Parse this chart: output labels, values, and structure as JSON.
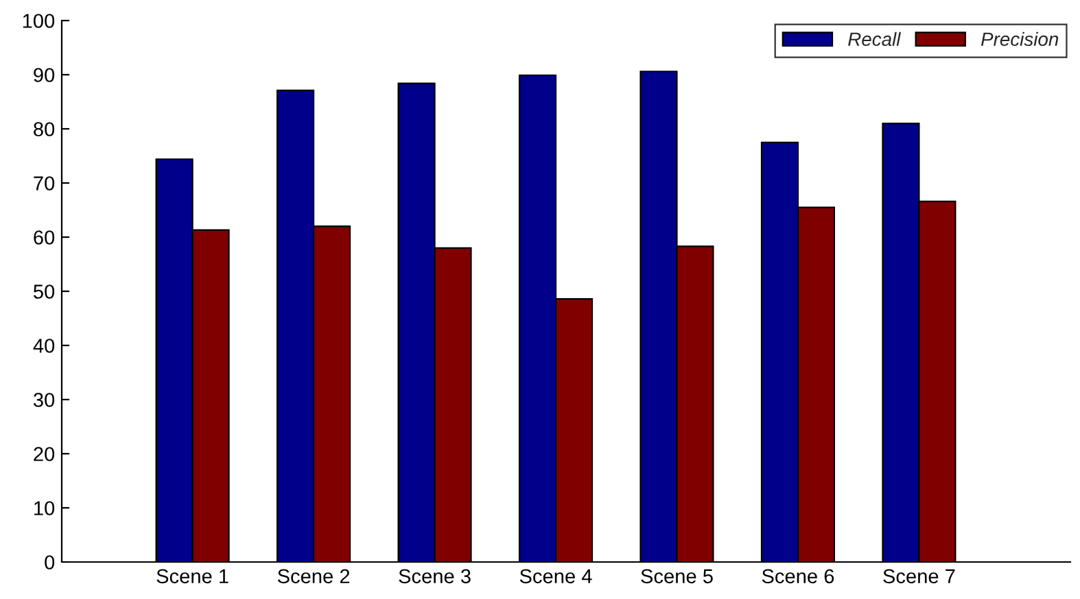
{
  "chart_data": {
    "type": "bar",
    "categories": [
      "Scene 1",
      "Scene 2",
      "Scene 3",
      "Scene 4",
      "Scene 5",
      "Scene 6",
      "Scene 7"
    ],
    "series": [
      {
        "name": "Recall",
        "color": "#00008b",
        "values": [
          74.4,
          87.1,
          88.4,
          89.9,
          90.6,
          77.5,
          81.0
        ]
      },
      {
        "name": "Precision",
        "color": "#800000",
        "values": [
          61.3,
          62.0,
          58.0,
          48.6,
          58.3,
          65.5,
          66.6
        ]
      }
    ],
    "ylim": [
      0,
      100
    ],
    "yticks": [
      0,
      10,
      20,
      30,
      40,
      50,
      60,
      70,
      80,
      90,
      100
    ],
    "grid": false,
    "legend": "top right"
  }
}
